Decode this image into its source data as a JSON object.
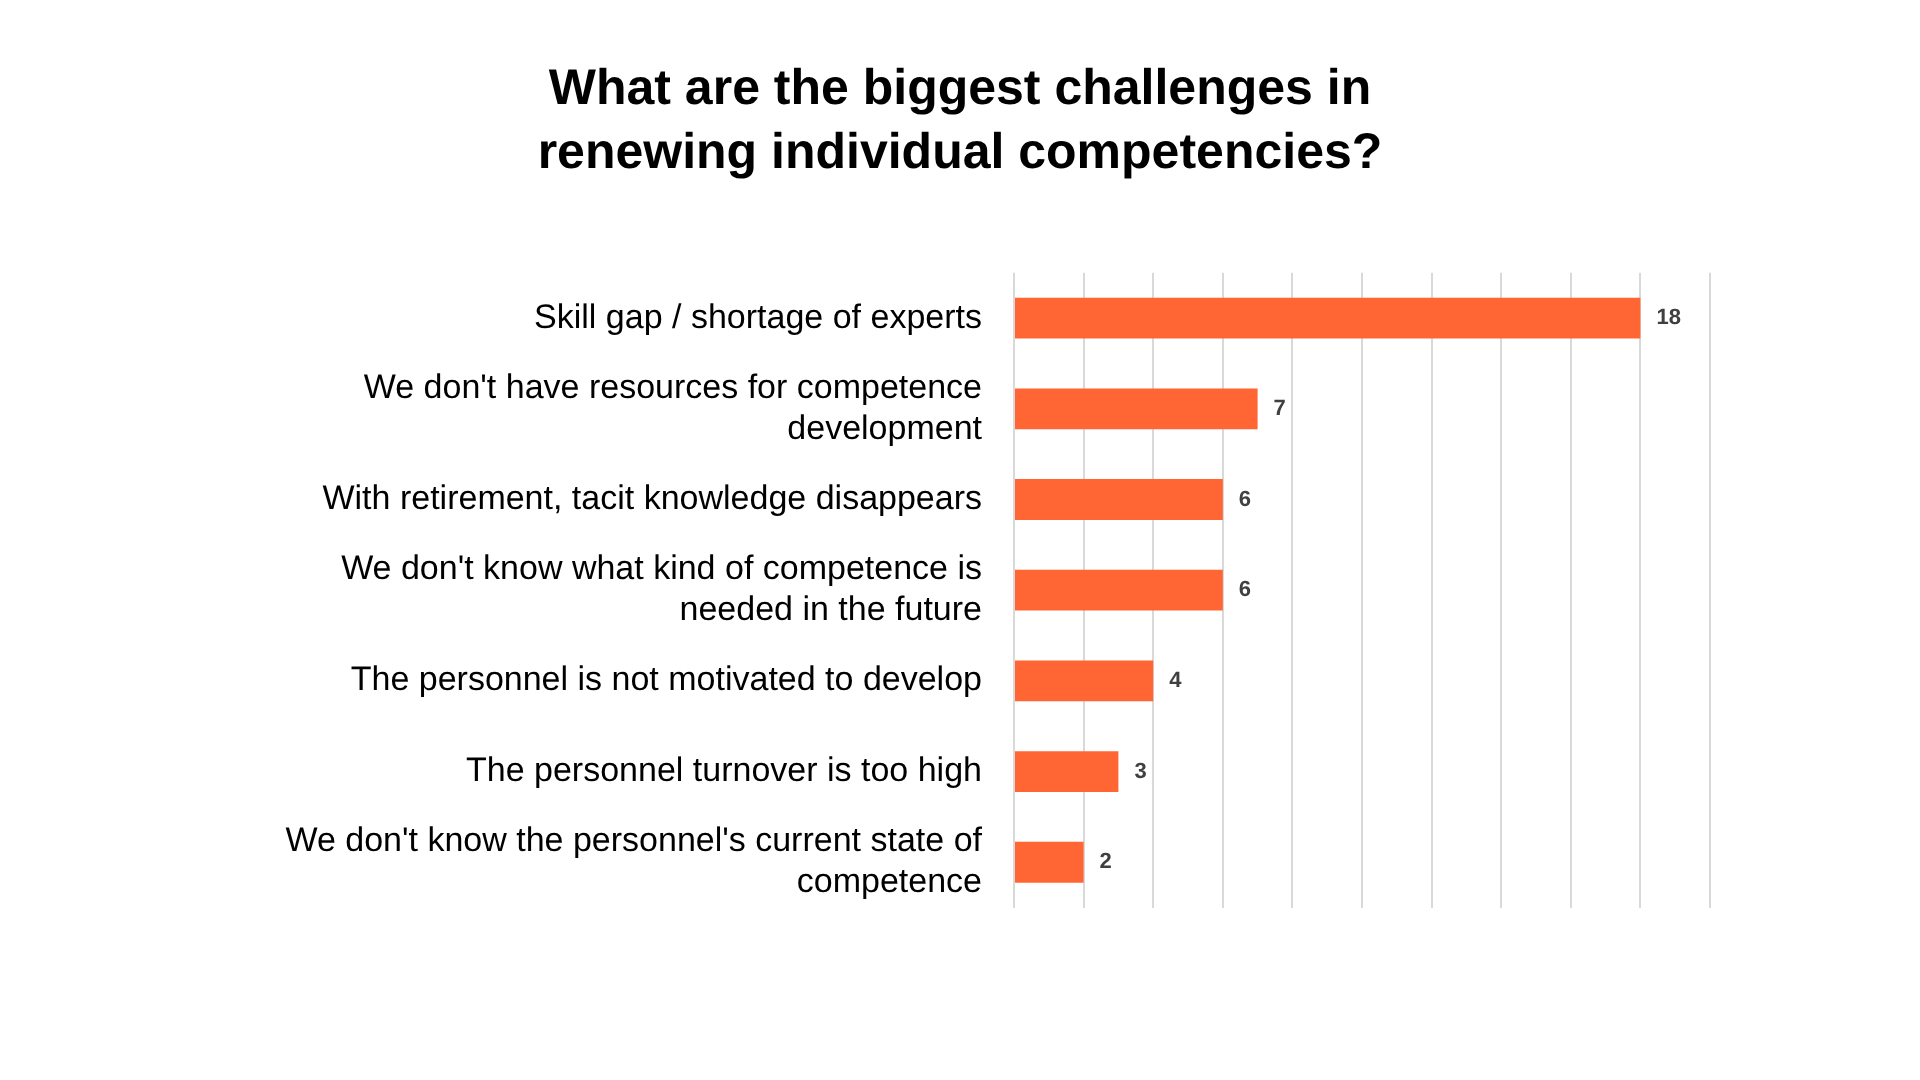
{
  "chart_data": {
    "type": "bar",
    "orientation": "horizontal",
    "title": "What are the biggest challenges in renewing individual competencies?",
    "categories": [
      "Skill gap / shortage of experts",
      "We don't have resources for competence development",
      "With retirement, tacit knowledge disappears",
      "We don't know what kind of competence is needed in the future",
      "The personnel is not motivated to develop",
      "The personnel turnover is too high",
      "We don't know the personnel's current state of competence"
    ],
    "values": [
      18,
      7,
      6,
      6,
      4,
      3,
      2
    ],
    "color": "#ff6633",
    "xlim": [
      0,
      20
    ],
    "xticks": [
      {
        "value": 0,
        "label": null
      },
      {
        "value": 2,
        "label": null
      },
      {
        "value": 4,
        "label": null
      },
      {
        "value": 6,
        "label": null
      },
      {
        "value": 8,
        "label": null
      },
      {
        "value": 10,
        "label": null
      },
      {
        "value": 12,
        "label": null
      },
      {
        "value": 14,
        "label": null
      },
      {
        "value": 16,
        "label": null
      },
      {
        "value": 18,
        "label": null
      },
      {
        "value": 20,
        "label": null
      }
    ],
    "grid": "x",
    "tick_labels": "y",
    "data_labels": true,
    "legend": false
  }
}
